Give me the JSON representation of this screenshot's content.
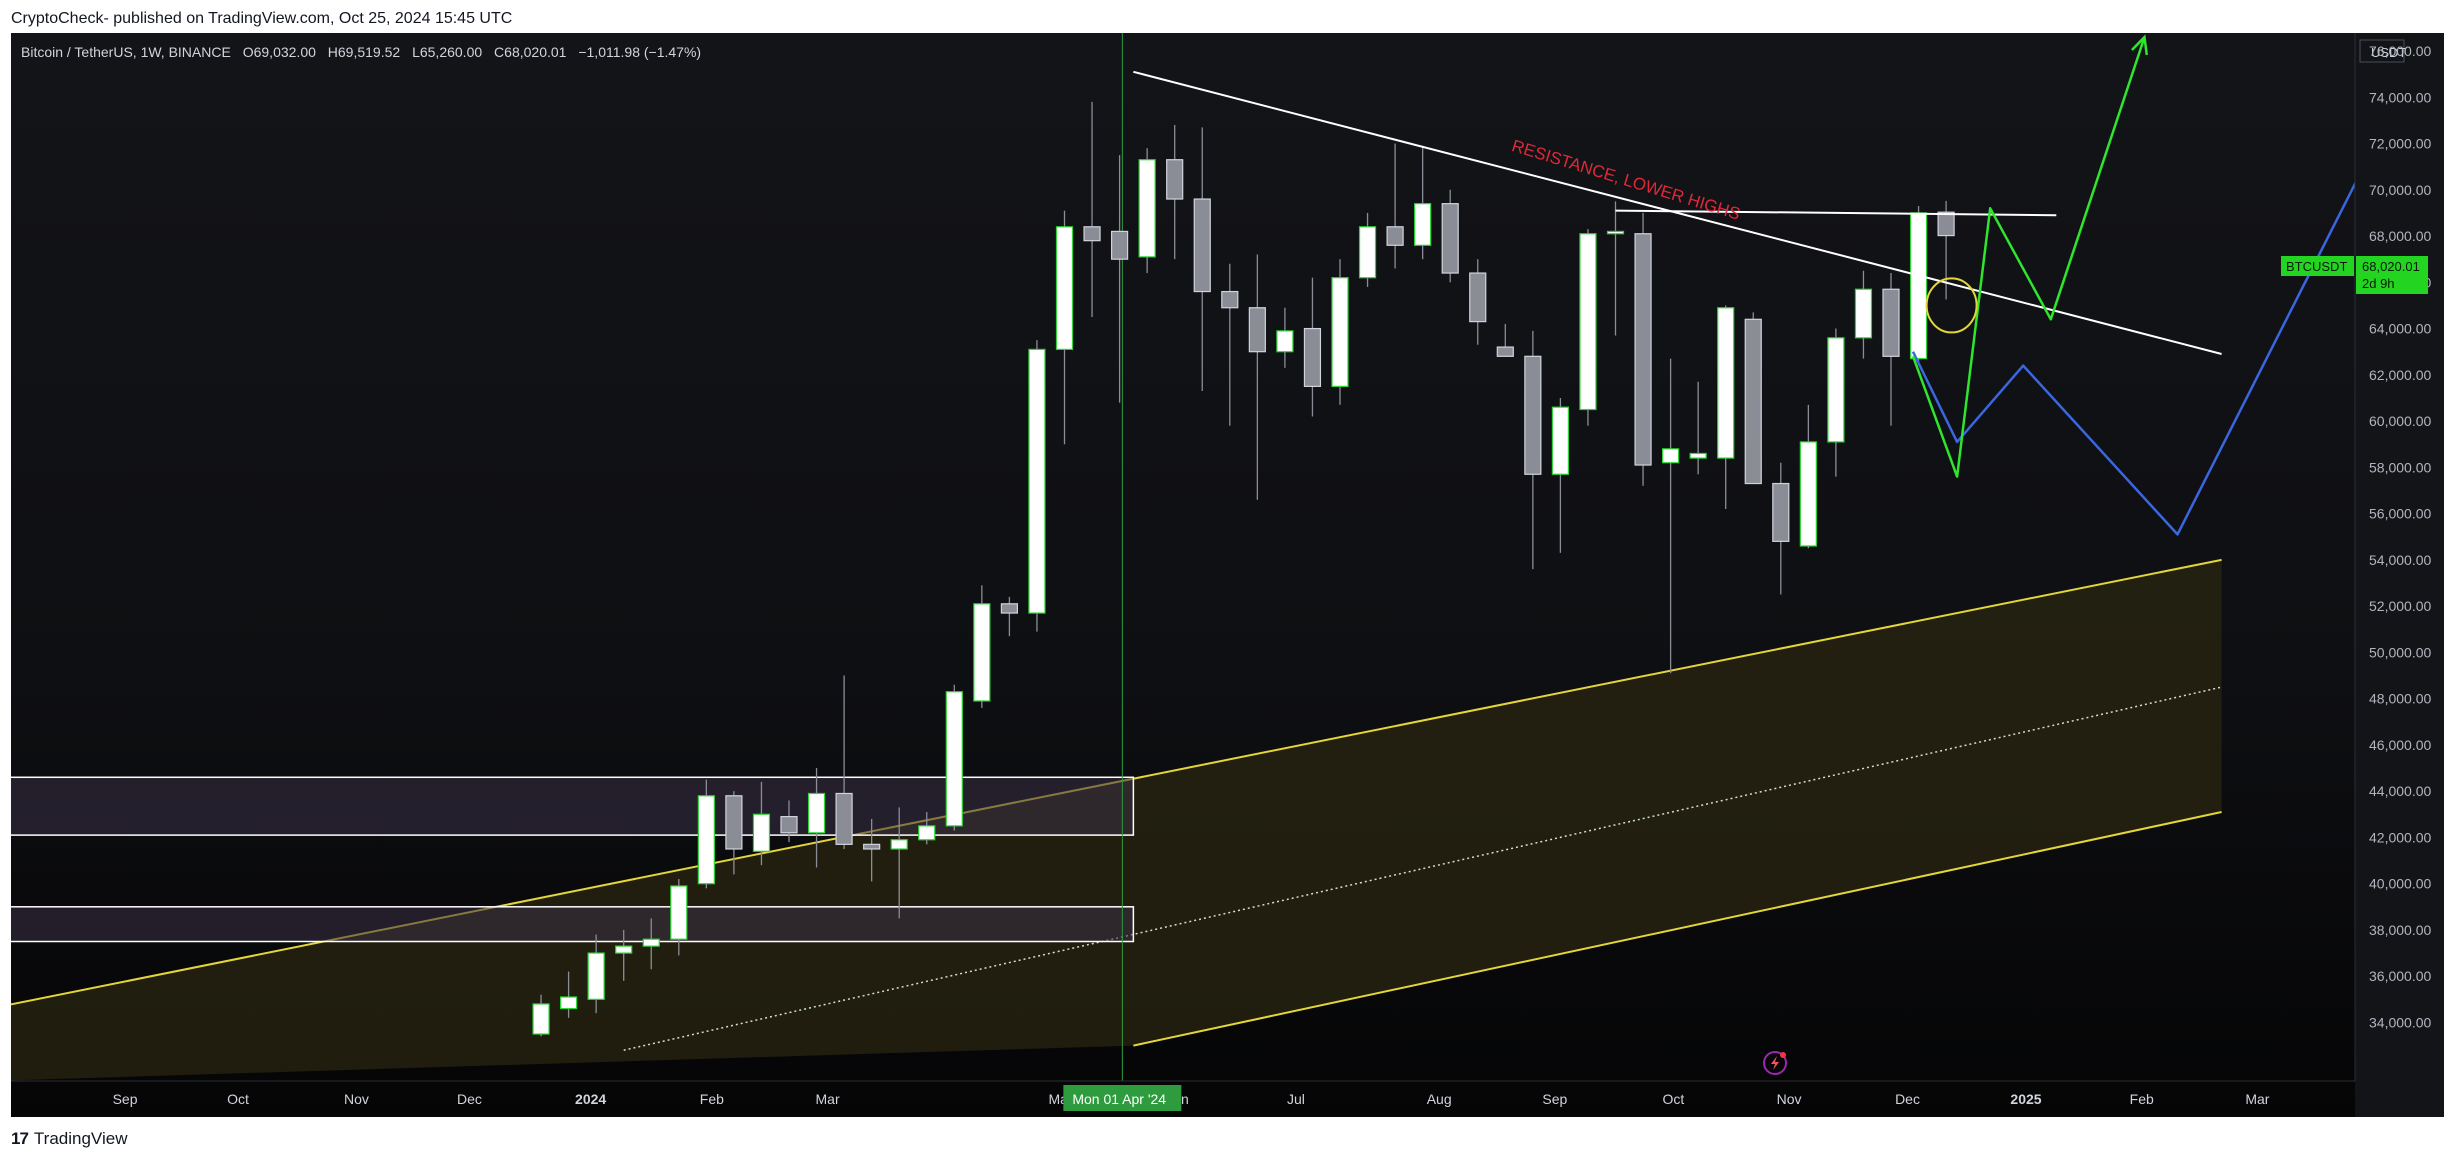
{
  "header": {
    "publisher_text": "CryptoCheck- published on TradingView.com, Oct 25, 2024 15:45 UTC"
  },
  "legend": {
    "symbol": "Bitcoin / TetherUS, 1W, BINANCE",
    "open": "O69,032.00",
    "high": "H69,519.52",
    "low": "L65,260.00",
    "close": "C68,020.01",
    "change": "−1,011.98 (−1.47%)"
  },
  "footer": {
    "brand": "TradingView"
  },
  "price_tag": {
    "symbol": "BTCUSDT",
    "price": "68,020.01",
    "countdown": "2d 9h"
  },
  "crosshair_date": "Mon 01 Apr '24",
  "colors": {
    "background": "#131418",
    "up_candle": "#ffffff",
    "down_candle": "#8a8d96",
    "candle_border": "#2fd636",
    "channel": "#e4d63a",
    "channel_fill": "#2a2612",
    "resistance": "#ffffff",
    "annotation": "#e0283a",
    "projection_green": "#2ee62e",
    "projection_blue": "#3a66e0",
    "circle": "#e4d63a",
    "crosshair": "#2e9c3e",
    "price_tag_bg": "#23d421"
  },
  "chart_data": {
    "type": "candlestick",
    "title": "Bitcoin / TetherUS, 1W, BINANCE",
    "y_axis_unit": "USDT",
    "ylim": [
      33000,
      78500
    ],
    "y_ticks": [
      34000,
      36000,
      38000,
      40000,
      42000,
      44000,
      46000,
      48000,
      50000,
      52000,
      54000,
      56000,
      58000,
      60000,
      62000,
      64000,
      66000,
      68000,
      70000,
      72000,
      74000,
      76000
    ],
    "x_ticks": [
      {
        "label": "Aug",
        "week": -8.3
      },
      {
        "label": "Sep",
        "week": -4.1
      },
      {
        "label": "Oct",
        "week": 0
      },
      {
        "label": "Nov",
        "week": 4.3
      },
      {
        "label": "Dec",
        "week": 8.4
      },
      {
        "label": "2024",
        "week": 12.8,
        "bold": true
      },
      {
        "label": "Feb",
        "week": 17.2
      },
      {
        "label": "Mar",
        "week": 21.4
      },
      {
        "label": "May",
        "week": 29.9
      },
      {
        "label": "Jun",
        "week": 34.1
      },
      {
        "label": "Jul",
        "week": 38.4
      },
      {
        "label": "Aug",
        "week": 43.6
      },
      {
        "label": "Sep",
        "week": 47.8
      },
      {
        "label": "Oct",
        "week": 52.1
      },
      {
        "label": "Nov",
        "week": 56.3
      },
      {
        "label": "Dec",
        "week": 60.6
      },
      {
        "label": "2025",
        "week": 64.9,
        "bold": true
      },
      {
        "label": "Feb",
        "week": 69.1
      },
      {
        "label": "Mar",
        "week": 73.3
      }
    ],
    "candles": [
      {
        "week": 11.0,
        "o": 33500,
        "h": 35200,
        "l": 33400,
        "c": 34800
      },
      {
        "week": 12.0,
        "o": 34600,
        "h": 36200,
        "l": 34200,
        "c": 35100
      },
      {
        "week": 13.0,
        "o": 35000,
        "h": 37800,
        "l": 34400,
        "c": 37000
      },
      {
        "week": 14.0,
        "o": 37000,
        "h": 38000,
        "l": 35800,
        "c": 37300
      },
      {
        "week": 15.0,
        "o": 37300,
        "h": 38500,
        "l": 36300,
        "c": 37600
      },
      {
        "week": 16.0,
        "o": 37600,
        "h": 40200,
        "l": 36900,
        "c": 39900
      },
      {
        "week": 17.0,
        "o": 40000,
        "h": 44500,
        "l": 39800,
        "c": 43800
      },
      {
        "week": 18.0,
        "o": 43800,
        "h": 44000,
        "l": 40400,
        "c": 41500
      },
      {
        "week": 19.0,
        "o": 41400,
        "h": 44400,
        "l": 40800,
        "c": 43000
      },
      {
        "week": 20.0,
        "o": 42900,
        "h": 43600,
        "l": 41800,
        "c": 42200
      },
      {
        "week": 21.0,
        "o": 42200,
        "h": 45000,
        "l": 40700,
        "c": 43900
      },
      {
        "week": 22.0,
        "o": 43900,
        "h": 49000,
        "l": 41500,
        "c": 41700
      },
      {
        "week": 23.0,
        "o": 41700,
        "h": 42800,
        "l": 40100,
        "c": 41500
      },
      {
        "week": 24.0,
        "o": 41500,
        "h": 43300,
        "l": 38500,
        "c": 41900
      },
      {
        "week": 25.0,
        "o": 41900,
        "h": 43100,
        "l": 41700,
        "c": 42500
      },
      {
        "week": 26.0,
        "o": 42500,
        "h": 48600,
        "l": 42300,
        "c": 48300
      },
      {
        "week": 27.0,
        "o": 47900,
        "h": 52900,
        "l": 47600,
        "c": 52100
      },
      {
        "week": 28.0,
        "o": 52100,
        "h": 52400,
        "l": 50700,
        "c": 51700
      },
      {
        "week": 29.0,
        "o": 51700,
        "h": 63500,
        "l": 50900,
        "c": 63100
      },
      {
        "week": 30.0,
        "o": 63100,
        "h": 69100,
        "l": 59000,
        "c": 68400
      },
      {
        "week": 31.0,
        "o": 68400,
        "h": 73800,
        "l": 64500,
        "c": 67800
      },
      {
        "week": 32.0,
        "o": 68200,
        "h": 71500,
        "l": 60800,
        "c": 67000
      },
      {
        "week": 33.0,
        "o": 67100,
        "h": 71800,
        "l": 66400,
        "c": 71300
      },
      {
        "week": 34.0,
        "o": 71300,
        "h": 72800,
        "l": 67000,
        "c": 69600
      },
      {
        "week": 35.0,
        "o": 69600,
        "h": 72700,
        "l": 61300,
        "c": 65600
      },
      {
        "week": 36.0,
        "o": 65600,
        "h": 66800,
        "l": 59800,
        "c": 64900
      },
      {
        "week": 37.0,
        "o": 64900,
        "h": 67200,
        "l": 56600,
        "c": 63000
      },
      {
        "week": 38.0,
        "o": 63000,
        "h": 64900,
        "l": 62300,
        "c": 63900
      },
      {
        "week": 39.0,
        "o": 64000,
        "h": 66200,
        "l": 60200,
        "c": 61500
      },
      {
        "week": 40.0,
        "o": 61500,
        "h": 67000,
        "l": 60700,
        "c": 66200
      },
      {
        "week": 41.0,
        "o": 66200,
        "h": 69000,
        "l": 65800,
        "c": 68400
      },
      {
        "week": 42.0,
        "o": 68400,
        "h": 72000,
        "l": 66600,
        "c": 67600
      },
      {
        "week": 43.0,
        "o": 67600,
        "h": 71900,
        "l": 67000,
        "c": 69400
      },
      {
        "week": 44.0,
        "o": 69400,
        "h": 70000,
        "l": 66000,
        "c": 66400
      },
      {
        "week": 45.0,
        "o": 66400,
        "h": 67000,
        "l": 63300,
        "c": 64300
      },
      {
        "week": 46.0,
        "o": 63200,
        "h": 64200,
        "l": 62800,
        "c": 62800
      },
      {
        "week": 47.0,
        "o": 62800,
        "h": 63900,
        "l": 53600,
        "c": 57700
      },
      {
        "week": 48.0,
        "o": 57700,
        "h": 61000,
        "l": 54300,
        "c": 60600
      },
      {
        "week": 49.0,
        "o": 60500,
        "h": 68300,
        "l": 59800,
        "c": 68100
      },
      {
        "week": 50.0,
        "o": 68100,
        "h": 69500,
        "l": 63700,
        "c": 68200
      },
      {
        "week": 51.0,
        "o": 68100,
        "h": 69000,
        "l": 57200,
        "c": 58100
      },
      {
        "week": 52.0,
        "o": 58200,
        "h": 62700,
        "l": 49100,
        "c": 58800
      },
      {
        "week": 53.0,
        "o": 58400,
        "h": 61700,
        "l": 57700,
        "c": 58600
      },
      {
        "week": 54.0,
        "o": 58400,
        "h": 65000,
        "l": 56200,
        "c": 64900
      },
      {
        "week": 55.0,
        "o": 64400,
        "h": 64700,
        "l": 57300,
        "c": 57300
      },
      {
        "week": 56.0,
        "o": 57300,
        "h": 58200,
        "l": 52500,
        "c": 54800
      },
      {
        "week": 57.0,
        "o": 54600,
        "h": 60700,
        "l": 54500,
        "c": 59100
      },
      {
        "week": 58.0,
        "o": 59100,
        "h": 64000,
        "l": 57600,
        "c": 63600
      },
      {
        "week": 59.0,
        "o": 63600,
        "h": 66500,
        "l": 62700,
        "c": 65700
      },
      {
        "week": 60.0,
        "o": 65700,
        "h": 66400,
        "l": 59800,
        "c": 62800
      },
      {
        "week": 61.0,
        "o": 62700,
        "h": 69300,
        "l": 62400,
        "c": 69000
      },
      {
        "week": 62.0,
        "o": 69032,
        "h": 69519.52,
        "l": 65260,
        "c": 68020.01
      }
    ],
    "drawings": {
      "resistance_label": "RESISTANCE, LOWER HIGHS",
      "resistance_line_1": [
        {
          "week": 32.5,
          "price": 75100
        },
        {
          "week": 72.0,
          "price": 62900
        }
      ],
      "resistance_line_2": [
        {
          "week": 50.0,
          "price": 69100
        },
        {
          "week": 66.0,
          "price": 68900
        }
      ],
      "channel_upper": [
        {
          "week": -9.0,
          "price": 34600
        },
        {
          "week": 72.0,
          "price": 54000
        }
      ],
      "channel_mid": [
        {
          "week": 14.0,
          "price": 32800
        },
        {
          "week": 72.0,
          "price": 48500
        }
      ],
      "channel_lower": [
        {
          "week": 32.5,
          "price": 33000
        },
        {
          "week": 72.0,
          "price": 43100
        }
      ],
      "zones": [
        {
          "from_week": -9.0,
          "to_week": 32.5,
          "top": 44600,
          "bottom": 42100
        },
        {
          "from_week": -9.0,
          "to_week": 32.5,
          "top": 39000,
          "bottom": 37500
        }
      ],
      "projection_green": [
        {
          "week": 60.8,
          "price": 62800
        },
        {
          "week": 62.4,
          "price": 57600
        },
        {
          "week": 63.6,
          "price": 69200
        },
        {
          "week": 65.8,
          "price": 64400
        },
        {
          "week": 69.2,
          "price": 76600
        }
      ],
      "projection_blue": [
        {
          "week": 60.8,
          "price": 63000
        },
        {
          "week": 62.4,
          "price": 59100
        },
        {
          "week": 64.8,
          "price": 62400
        },
        {
          "week": 70.4,
          "price": 55100
        },
        {
          "week": 77.2,
          "price": 71100
        },
        {
          "week": 78.4,
          "price": 73600
        }
      ],
      "crosshair_week": 32.1,
      "circle": {
        "week": 62.2,
        "price": 65000
      }
    }
  }
}
